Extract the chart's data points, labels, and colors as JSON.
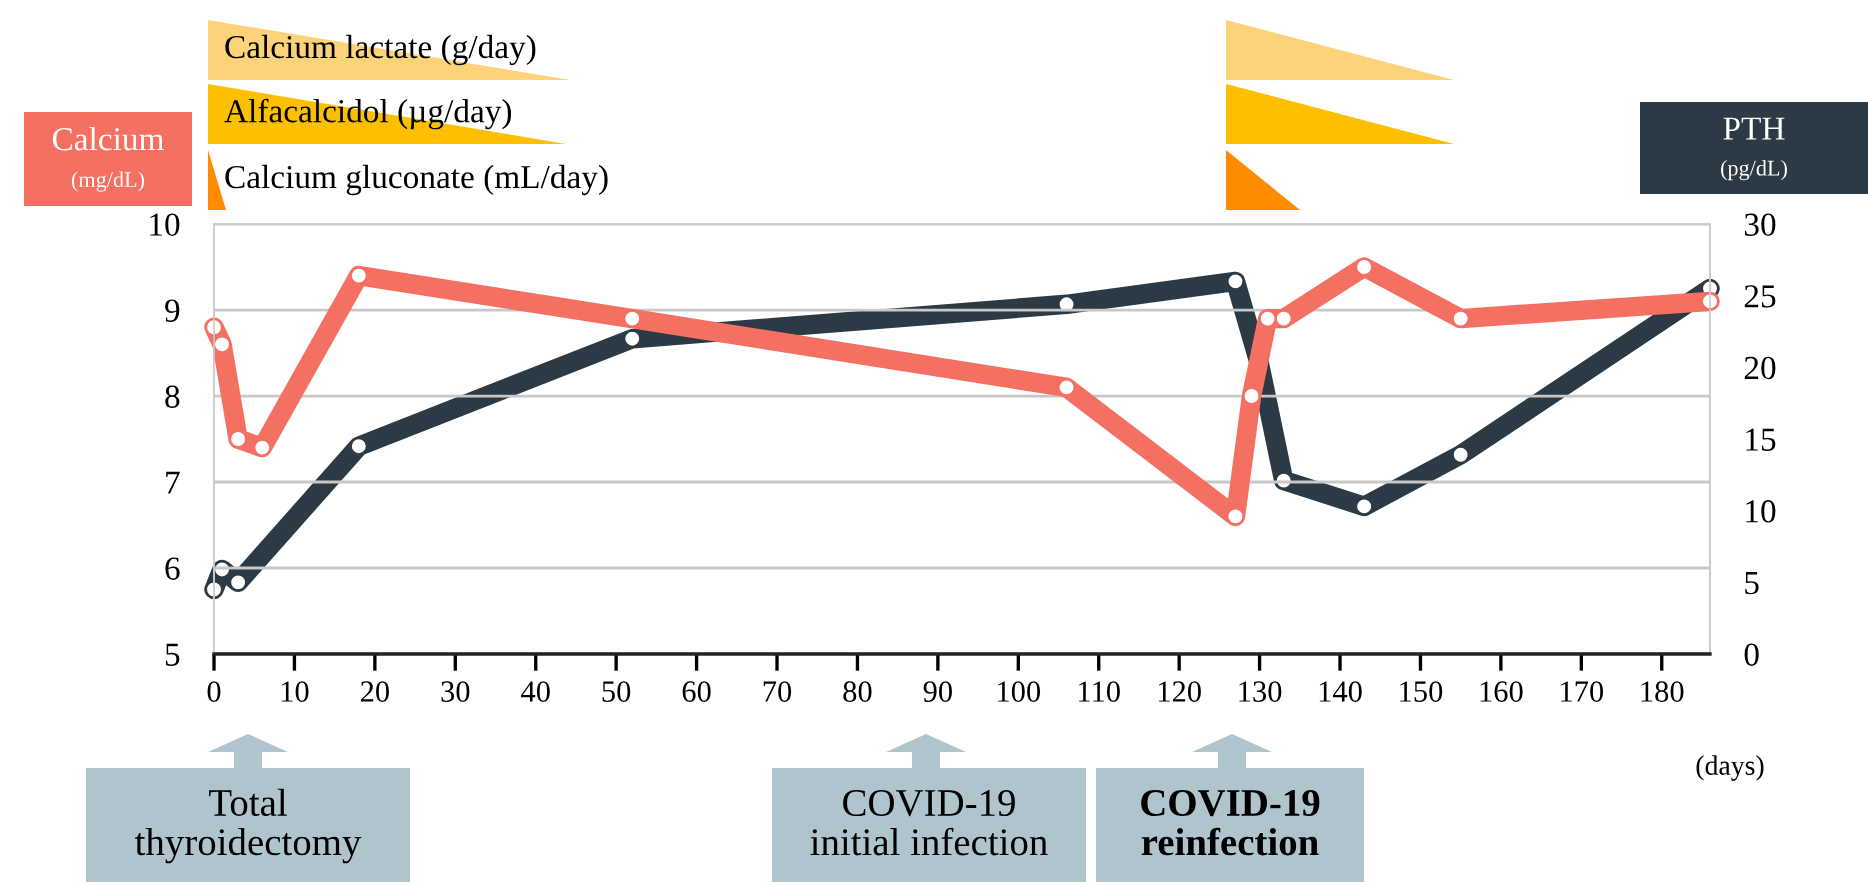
{
  "chart_data": {
    "type": "line",
    "xlabel": "(days)",
    "ylabel": "Calcium\n(mg/dL)",
    "y2label": "PTH\n(pg/dL)",
    "xlim": [
      0,
      186
    ],
    "xticks": [
      0,
      10,
      20,
      30,
      40,
      50,
      60,
      70,
      80,
      90,
      100,
      110,
      120,
      130,
      140,
      150,
      160,
      170,
      180
    ],
    "ylim": [
      5,
      10
    ],
    "yticks": [
      5,
      6,
      7,
      8,
      9,
      10
    ],
    "y2lim": [
      0,
      30
    ],
    "y2ticks": [
      0,
      5,
      10,
      15,
      20,
      25,
      30
    ],
    "grid": "y",
    "marker": "circle",
    "line_style": "solid",
    "series": [
      {
        "color": "#f37063",
        "x": [
          0,
          1,
          3,
          6,
          18,
          52,
          106,
          127,
          129,
          131,
          133,
          143,
          155,
          186
        ],
        "values": [
          8.8,
          8.6,
          7.5,
          7.4,
          9.4,
          8.9,
          8.1,
          6.6,
          8.0,
          8.9,
          8.9,
          9.5,
          8.9,
          9.1
        ]
      },
      {
        "color": "#2b3a44",
        "axis": "y2",
        "x": [
          0,
          1,
          3,
          18,
          52,
          106,
          127,
          130,
          133,
          143,
          155,
          186
        ],
        "values": [
          4.5,
          5.9,
          5.0,
          14.5,
          22.0,
          24.4,
          26.0,
          20.2,
          12.1,
          10.3,
          13.9,
          25.5
        ]
      }
    ],
    "annotations": [
      "Calcium lactate (g/day)",
      "Alfacalcidol (µg/day)",
      "Calcium gluconate (mL/day)",
      "Total\nthyroidectomy",
      "COVID-19\ninitial infection",
      "COVID-19\nreinfection"
    ]
  }
}
